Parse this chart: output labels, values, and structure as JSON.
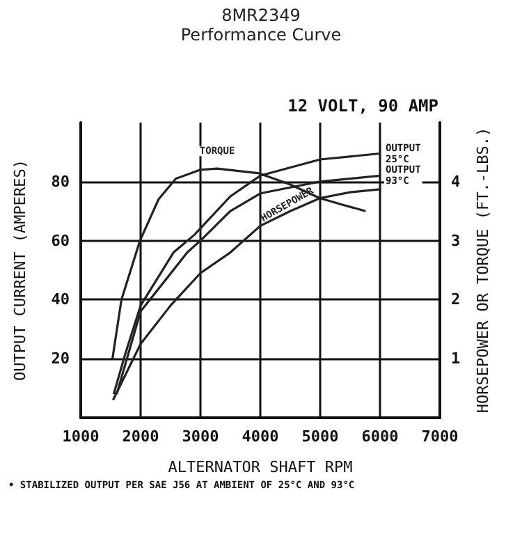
{
  "chart_data": {
    "type": "line",
    "title": "8MR2349",
    "subtitle": "Performance Curve",
    "xlabel": "ALTERNATOR SHAFT RPM",
    "ylabel": "OUTPUT CURRENT (AMPERES)",
    "y2label": "HORSEPOWER OR TORQUE (FT.-LBS.)",
    "annotations": [
      "12 VOLT, 90 AMP",
      "• STABILIZED OUTPUT PER SAE J56 AT AMBIENT OF 25°C AND 93°C"
    ],
    "xlim": [
      1000,
      7000
    ],
    "xticks": [
      1000,
      2000,
      3000,
      4000,
      5000,
      6000,
      7000
    ],
    "ylim": [
      0,
      100
    ],
    "yticks": [
      20,
      40,
      60,
      80
    ],
    "y2lim": [
      0,
      5
    ],
    "y2ticks": [
      1,
      2,
      3,
      4
    ],
    "grid": true,
    "legend": false,
    "marker": "none",
    "line_style": "solid",
    "series": [
      {
        "name": "OUTPUT 25°C",
        "color": "#222222",
        "x": [
          1550,
          1750,
          2000,
          2550,
          2900,
          3500,
          4000,
          5000,
          6000
        ],
        "values": [
          8,
          22,
          38,
          56,
          62,
          75,
          82,
          87.5,
          89.5
        ]
      },
      {
        "name": "OUTPUT 93°C",
        "color": "#222222",
        "x": [
          1600,
          1800,
          2000,
          2780,
          3000,
          3500,
          4000,
          5000,
          6000
        ],
        "values": [
          8,
          22,
          36,
          56,
          60,
          70,
          76,
          80,
          82
        ]
      },
      {
        "name": "TORQUE",
        "color": "#222222",
        "axis": "y2",
        "x": [
          1530,
          1680,
          1990,
          2300,
          2590,
          3000,
          3280,
          3980,
          4500,
          4990,
          5400,
          5760
        ],
        "values": [
          1.0,
          2.0,
          3.0,
          3.7,
          4.05,
          4.2,
          4.22,
          4.14,
          3.95,
          3.72,
          3.6,
          3.5
        ]
      },
      {
        "name": "HORSEPOWER",
        "color": "#222222",
        "axis": "y2",
        "x": [
          1540,
          2000,
          2500,
          3000,
          3500,
          4000,
          4500,
          5000,
          5500,
          6000
        ],
        "values": [
          0.3,
          1.25,
          1.9,
          2.45,
          2.8,
          3.25,
          3.5,
          3.72,
          3.82,
          3.87
        ]
      }
    ]
  }
}
